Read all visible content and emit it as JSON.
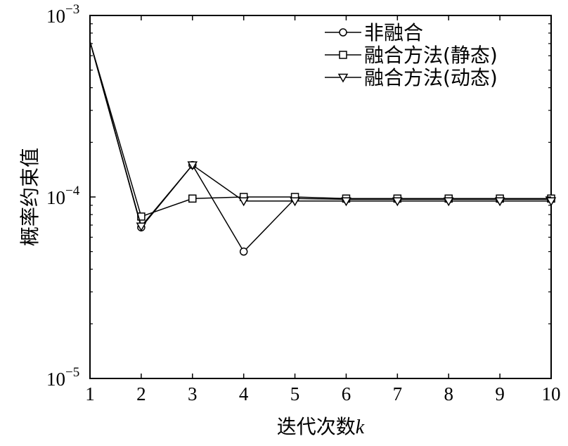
{
  "chart_data": {
    "type": "line",
    "title": "",
    "xlabel_text": "迭代次数",
    "xlabel_var": "k",
    "ylabel": "概率约束值",
    "xlim": [
      1,
      10
    ],
    "ylim": [
      1e-05,
      0.001
    ],
    "yscale": "log",
    "x_ticks": [
      "1",
      "2",
      "3",
      "4",
      "5",
      "6",
      "7",
      "8",
      "9",
      "10"
    ],
    "y_ticks": [
      {
        "base": "10",
        "exp": "−5",
        "value": 1e-05
      },
      {
        "base": "10",
        "exp": "−4",
        "value": 0.0001
      },
      {
        "base": "10",
        "exp": "−3",
        "value": 0.001
      }
    ],
    "grid": false,
    "legend_position": "top-right",
    "x": [
      1,
      2,
      3,
      4,
      5,
      6,
      7,
      8,
      9,
      10
    ],
    "series": [
      {
        "name": "非融合",
        "marker": "circle",
        "values": [
          0.00072,
          6.8e-05,
          0.00015,
          5e-05,
          9.8e-05,
          9.7e-05,
          9.7e-05,
          9.7e-05,
          9.7e-05,
          9.7e-05
        ]
      },
      {
        "name": "融合方法(静态)",
        "marker": "square",
        "values": [
          0.00072,
          7.8e-05,
          9.8e-05,
          0.0001,
          0.0001,
          9.8e-05,
          9.8e-05,
          9.8e-05,
          9.8e-05,
          9.8e-05
        ]
      },
      {
        "name": "融合方法(动态)",
        "marker": "triangle-down",
        "values": [
          0.00072,
          6.9e-05,
          0.00015,
          9.5e-05,
          9.5e-05,
          9.5e-05,
          9.5e-05,
          9.5e-05,
          9.5e-05,
          9.5e-05
        ]
      }
    ]
  }
}
